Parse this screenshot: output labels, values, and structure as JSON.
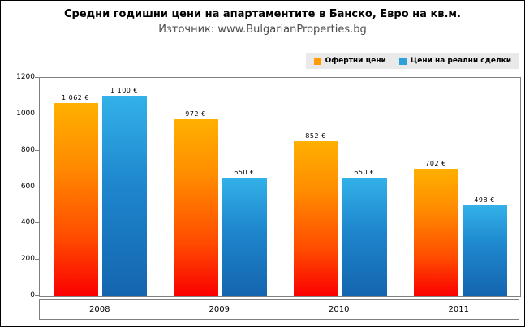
{
  "page": {
    "title": "Средни годишни цени на апартаментите в Банско, Евро на кв.м.",
    "subtitle": "Източник: www.BulgarianProperties.bg"
  },
  "legend": [
    {
      "label": "Офертни цени",
      "color": "#FF9C00"
    },
    {
      "label": "Цени на реални сделки",
      "color": "#2D9FD9"
    }
  ],
  "chart_data": {
    "type": "bar",
    "title": "Средни годишни цени на апартаментите в Банско, Евро на кв.м.",
    "subtitle": "Източник: www.BulgarianProperties.bg",
    "categories": [
      "2008",
      "2009",
      "2010",
      "2011"
    ],
    "series": [
      {
        "name": "Офертни цени",
        "values": [
          1062,
          972,
          852,
          702
        ],
        "labels": [
          "1 062 €",
          "972 €",
          "852 €",
          "702 €"
        ],
        "color_gradient": [
          "#FA0000",
          "#FFB000"
        ]
      },
      {
        "name": "Цени на реални сделки",
        "values": [
          1100,
          650,
          650,
          498
        ],
        "labels": [
          "1 100 €",
          "650 €",
          "650 €",
          "498 €"
        ],
        "color_gradient": [
          "#1465AE",
          "#33B1E8"
        ]
      }
    ],
    "xlabel": "",
    "ylabel": "",
    "ylim": [
      0,
      1200
    ],
    "yticks": [
      0,
      200,
      400,
      600,
      800,
      1000,
      1200
    ],
    "grid": false,
    "legend_position": "top-right"
  }
}
